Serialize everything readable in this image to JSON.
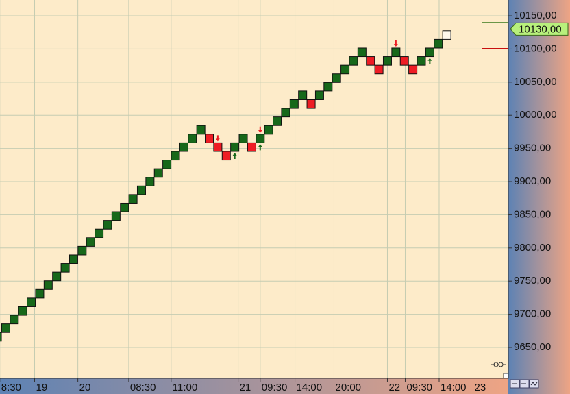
{
  "chart_data": {
    "type": "renko",
    "values": [
      9666,
      9679,
      9692,
      9705,
      9718,
      9731,
      9744,
      9757,
      9770,
      9783,
      9796,
      9809,
      9822,
      9835,
      9848,
      9861,
      9874,
      9887,
      9900,
      9913,
      9926,
      9939,
      9952,
      9965,
      9978,
      9965,
      9952,
      9939,
      9952,
      9965,
      9952,
      9965,
      9978,
      9991,
      10004,
      10017,
      10030,
      10017,
      10030,
      10043,
      10056,
      10069,
      10082,
      10095,
      10082,
      10069,
      10082,
      10095,
      10082,
      10069,
      10082,
      10095,
      10108,
      10121
    ],
    "brick_size": 13,
    "up_color": "#17681a",
    "down_color": "#ee1c24",
    "open_color": "#fff8ec",
    "last_brick_open": true,
    "xlim": [
      0.32,
      60.26
    ],
    "xticks": [
      {
        "value": 0.3,
        "label": "8:30"
      },
      {
        "value": 4.4,
        "label": "19"
      },
      {
        "value": 9.5,
        "label": "20"
      },
      {
        "value": 15.5,
        "label": "08:30"
      },
      {
        "value": 20.5,
        "label": "11:00"
      },
      {
        "value": 28.4,
        "label": "21"
      },
      {
        "value": 31.0,
        "label": "09:30"
      },
      {
        "value": 35.1,
        "label": "14:00"
      },
      {
        "value": 39.7,
        "label": "20:00"
      },
      {
        "value": 46.0,
        "label": "22"
      },
      {
        "value": 48.1,
        "label": "09:30"
      },
      {
        "value": 52.1,
        "label": "14:00"
      },
      {
        "value": 56.1,
        "label": "23"
      }
    ],
    "ylim": [
      9603.5,
      10173.8
    ],
    "yticks": [
      {
        "value": 9650,
        "label": "9650,00"
      },
      {
        "value": 9700,
        "label": "9700,00"
      },
      {
        "value": 9750,
        "label": "9750,00"
      },
      {
        "value": 9800,
        "label": "9800,00"
      },
      {
        "value": 9850,
        "label": "9850,00"
      },
      {
        "value": 9900,
        "label": "9900,00"
      },
      {
        "value": 9950,
        "label": "9950,00"
      },
      {
        "value": 10000,
        "label": "10000,00"
      },
      {
        "value": 10050,
        "label": "10050,00"
      },
      {
        "value": 10100,
        "label": "10100,00"
      },
      {
        "value": 10150,
        "label": "10150,00"
      }
    ],
    "grid": true,
    "markers": [
      {
        "value": 10140,
        "color": "#3b7a1c"
      },
      {
        "value": 10101,
        "color": "#c81010"
      }
    ],
    "last_price": {
      "value": 10130,
      "label": "10130,00",
      "color": "#b8f07c"
    },
    "signals": [
      {
        "brick": 26,
        "dir": "sell"
      },
      {
        "brick": 28,
        "dir": "buy"
      },
      {
        "brick": 31,
        "dir": "sell"
      },
      {
        "brick": 31,
        "dir": "buy"
      },
      {
        "brick": 47,
        "dir": "sell"
      },
      {
        "brick": 51,
        "dir": "buy"
      }
    ]
  }
}
